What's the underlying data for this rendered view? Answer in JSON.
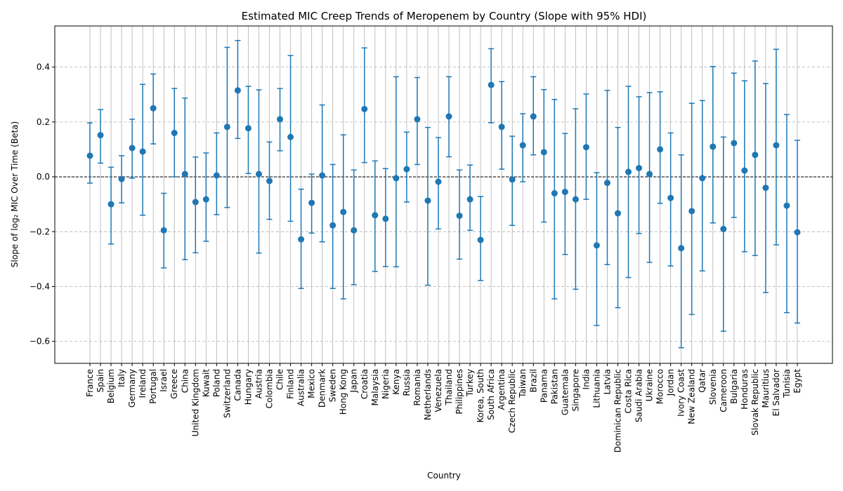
{
  "chart_data": {
    "type": "scatter",
    "title": "Estimated MIC Creep Trends of Meropenem by Country (Slope with 95% HDI)",
    "xlabel": "Country",
    "ylabel": "Slope of log₂ MIC Over Time (Beta)",
    "ylim": [
      -0.68,
      0.55
    ],
    "yticks": [
      -0.6,
      -0.4,
      -0.2,
      0.0,
      0.2,
      0.4
    ],
    "ytick_labels": [
      "−0.6",
      "−0.4",
      "−0.2",
      "0.0",
      "0.2",
      "0.4"
    ],
    "grid": true,
    "reference_line": 0,
    "colors": {
      "marker": "#1f77b4",
      "grid": "#b0b0b0",
      "reference": "#000000"
    },
    "points": [
      {
        "country": "France",
        "beta": 0.077,
        "lower": -0.023,
        "upper": 0.197
      },
      {
        "country": "Spain",
        "beta": 0.152,
        "lower": 0.05,
        "upper": 0.245
      },
      {
        "country": "Belgium",
        "beta": -0.1,
        "lower": -0.245,
        "upper": 0.035
      },
      {
        "country": "Italy",
        "beta": -0.008,
        "lower": -0.095,
        "upper": 0.077
      },
      {
        "country": "Germany",
        "beta": 0.105,
        "lower": -0.005,
        "upper": 0.21
      },
      {
        "country": "Ireland",
        "beta": 0.092,
        "lower": -0.14,
        "upper": 0.337
      },
      {
        "country": "Portugal",
        "beta": 0.25,
        "lower": 0.12,
        "upper": 0.375
      },
      {
        "country": "Israel",
        "beta": -0.195,
        "lower": -0.332,
        "upper": -0.06
      },
      {
        "country": "Greece",
        "beta": 0.16,
        "lower": 0.0,
        "upper": 0.322
      },
      {
        "country": "China",
        "beta": 0.01,
        "lower": -0.302,
        "upper": 0.287
      },
      {
        "country": "United Kingdom",
        "beta": -0.092,
        "lower": -0.277,
        "upper": 0.072
      },
      {
        "country": "Kuwait",
        "beta": -0.082,
        "lower": -0.235,
        "upper": 0.087
      },
      {
        "country": "Poland",
        "beta": 0.005,
        "lower": -0.138,
        "upper": 0.16
      },
      {
        "country": "Switzerland",
        "beta": 0.182,
        "lower": -0.112,
        "upper": 0.472
      },
      {
        "country": "Canada",
        "beta": 0.315,
        "lower": 0.14,
        "upper": 0.497
      },
      {
        "country": "Hungary",
        "beta": 0.177,
        "lower": 0.012,
        "upper": 0.33
      },
      {
        "country": "Austria",
        "beta": 0.01,
        "lower": -0.278,
        "upper": 0.317
      },
      {
        "country": "Colombia",
        "beta": -0.015,
        "lower": -0.155,
        "upper": 0.127
      },
      {
        "country": "Chile",
        "beta": 0.21,
        "lower": 0.095,
        "upper": 0.322
      },
      {
        "country": "Finland",
        "beta": 0.145,
        "lower": -0.162,
        "upper": 0.442
      },
      {
        "country": "Australia",
        "beta": -0.228,
        "lower": -0.407,
        "upper": -0.045
      },
      {
        "country": "Mexico",
        "beta": -0.095,
        "lower": -0.205,
        "upper": 0.01
      },
      {
        "country": "Denmark",
        "beta": 0.005,
        "lower": -0.237,
        "upper": 0.262
      },
      {
        "country": "Sweden",
        "beta": -0.177,
        "lower": -0.407,
        "upper": 0.045
      },
      {
        "country": "Hong Kong",
        "beta": -0.128,
        "lower": -0.445,
        "upper": 0.153
      },
      {
        "country": "Japan",
        "beta": -0.195,
        "lower": -0.393,
        "upper": 0.025
      },
      {
        "country": "Croatia",
        "beta": 0.247,
        "lower": 0.052,
        "upper": 0.47
      },
      {
        "country": "Malaysia",
        "beta": -0.14,
        "lower": -0.345,
        "upper": 0.058
      },
      {
        "country": "Nigeria",
        "beta": -0.153,
        "lower": -0.327,
        "upper": 0.03
      },
      {
        "country": "Kenya",
        "beta": -0.005,
        "lower": -0.328,
        "upper": 0.365
      },
      {
        "country": "Russia",
        "beta": 0.028,
        "lower": -0.092,
        "upper": 0.163
      },
      {
        "country": "Romania",
        "beta": 0.21,
        "lower": 0.045,
        "upper": 0.362
      },
      {
        "country": "Netherlands",
        "beta": -0.087,
        "lower": -0.395,
        "upper": 0.18
      },
      {
        "country": "Venezuela",
        "beta": -0.018,
        "lower": -0.19,
        "upper": 0.143
      },
      {
        "country": "Thailand",
        "beta": 0.22,
        "lower": 0.073,
        "upper": 0.365
      },
      {
        "country": "Philippines",
        "beta": -0.142,
        "lower": -0.3,
        "upper": 0.025
      },
      {
        "country": "Turkey",
        "beta": -0.082,
        "lower": -0.195,
        "upper": 0.043
      },
      {
        "country": "Korea, South",
        "beta": -0.23,
        "lower": -0.378,
        "upper": -0.072
      },
      {
        "country": "South Africa",
        "beta": 0.335,
        "lower": 0.197,
        "upper": 0.467
      },
      {
        "country": "Argentina",
        "beta": 0.182,
        "lower": 0.028,
        "upper": 0.347
      },
      {
        "country": "Czech Republic",
        "beta": -0.01,
        "lower": -0.177,
        "upper": 0.148
      },
      {
        "country": "Taiwan",
        "beta": 0.115,
        "lower": -0.018,
        "upper": 0.23
      },
      {
        "country": "Brazil",
        "beta": 0.22,
        "lower": 0.08,
        "upper": 0.365
      },
      {
        "country": "Panama",
        "beta": 0.09,
        "lower": -0.165,
        "upper": 0.318
      },
      {
        "country": "Pakistan",
        "beta": -0.06,
        "lower": -0.445,
        "upper": 0.282
      },
      {
        "country": "Guatemala",
        "beta": -0.055,
        "lower": -0.283,
        "upper": 0.158
      },
      {
        "country": "Singapore",
        "beta": -0.082,
        "lower": -0.41,
        "upper": 0.248
      },
      {
        "country": "India",
        "beta": 0.108,
        "lower": -0.082,
        "upper": 0.302
      },
      {
        "country": "Lithuania",
        "beta": -0.25,
        "lower": -0.542,
        "upper": 0.015
      },
      {
        "country": "Latvia",
        "beta": -0.022,
        "lower": -0.32,
        "upper": 0.315
      },
      {
        "country": "Dominican Republic",
        "beta": -0.133,
        "lower": -0.477,
        "upper": 0.18
      },
      {
        "country": "Costa Rica",
        "beta": 0.018,
        "lower": -0.367,
        "upper": 0.33
      },
      {
        "country": "Saudi Arabia",
        "beta": 0.032,
        "lower": -0.207,
        "upper": 0.292
      },
      {
        "country": "Ukraine",
        "beta": 0.01,
        "lower": -0.312,
        "upper": 0.307
      },
      {
        "country": "Morocco",
        "beta": 0.1,
        "lower": -0.097,
        "upper": 0.31
      },
      {
        "country": "Jordan",
        "beta": -0.077,
        "lower": -0.325,
        "upper": 0.16
      },
      {
        "country": "Ivory Coast",
        "beta": -0.26,
        "lower": -0.623,
        "upper": 0.08
      },
      {
        "country": "New Zealand",
        "beta": -0.125,
        "lower": -0.502,
        "upper": 0.268
      },
      {
        "country": "Qatar",
        "beta": -0.005,
        "lower": -0.343,
        "upper": 0.278
      },
      {
        "country": "Slovenia",
        "beta": 0.11,
        "lower": -0.168,
        "upper": 0.402
      },
      {
        "country": "Cameroon",
        "beta": -0.19,
        "lower": -0.563,
        "upper": 0.145
      },
      {
        "country": "Bulgaria",
        "beta": 0.123,
        "lower": -0.148,
        "upper": 0.378
      },
      {
        "country": "Honduras",
        "beta": 0.023,
        "lower": -0.273,
        "upper": 0.35
      },
      {
        "country": "Slovak Republic",
        "beta": 0.08,
        "lower": -0.287,
        "upper": 0.422
      },
      {
        "country": "Mauritius",
        "beta": -0.04,
        "lower": -0.422,
        "upper": 0.34
      },
      {
        "country": "El Salvador",
        "beta": 0.115,
        "lower": -0.248,
        "upper": 0.465
      },
      {
        "country": "Tunisia",
        "beta": -0.105,
        "lower": -0.495,
        "upper": 0.227
      },
      {
        "country": "Egypt",
        "beta": -0.202,
        "lower": -0.533,
        "upper": 0.133
      }
    ]
  }
}
